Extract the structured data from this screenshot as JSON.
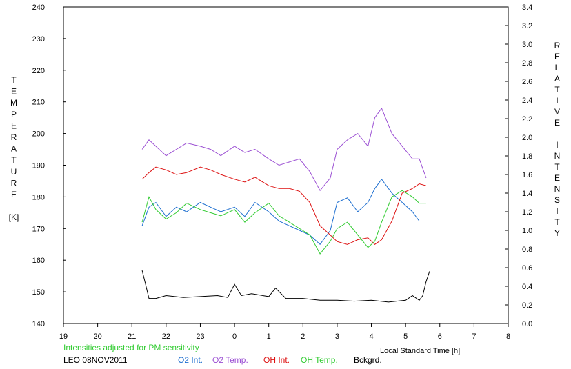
{
  "chart_data": {
    "type": "line",
    "title": "",
    "xlabel": "Local Standard Time [h]",
    "ylabel_left_letters": [
      "T",
      "E",
      "M",
      "P",
      "E",
      "R",
      "A",
      "T",
      "U",
      "R",
      "E",
      "",
      "[K]"
    ],
    "ylabel_right_letters": [
      "R",
      "E",
      "L",
      "A",
      "T",
      "I",
      "V",
      "E",
      "",
      "I",
      "N",
      "T",
      "E",
      "N",
      "S",
      "I",
      "T",
      "Y"
    ],
    "x_tick_labels": [
      "19",
      "20",
      "21",
      "22",
      "23",
      "0",
      "1",
      "2",
      "3",
      "4",
      "5",
      "6",
      "7",
      "8"
    ],
    "xlim": [
      19,
      32
    ],
    "ylim_left": [
      140,
      240
    ],
    "ylim_right": [
      0.0,
      3.4
    ],
    "left_ticks": [
      "140",
      "150",
      "160",
      "170",
      "180",
      "190",
      "200",
      "210",
      "220",
      "230",
      "240"
    ],
    "right_ticks": [
      "0.0",
      "0.2",
      "0.4",
      "0.6",
      "0.8",
      "1.0",
      "1.2",
      "1.4",
      "1.6",
      "1.8",
      "2.0",
      "2.2",
      "2.4",
      "2.6",
      "2.8",
      "3.0",
      "3.2",
      "3.4"
    ],
    "note": "Intensities adjusted for PM sensitivity",
    "site_label": "LEO 08NOV2011",
    "grid": false,
    "series": [
      {
        "name": "O2 Int.",
        "axis": "right",
        "color": "#1e6fd0",
        "x": [
          21.3,
          21.5,
          21.7,
          22.0,
          22.3,
          22.6,
          23.0,
          23.3,
          23.6,
          24.0,
          24.3,
          24.6,
          25.0,
          25.3,
          25.6,
          25.9,
          26.2,
          26.5,
          26.8,
          27.0,
          27.3,
          27.6,
          27.9,
          28.1,
          28.3,
          28.6,
          28.9,
          29.2,
          29.4,
          29.6
        ],
        "y": [
          1.05,
          1.25,
          1.3,
          1.15,
          1.25,
          1.2,
          1.3,
          1.25,
          1.2,
          1.25,
          1.15,
          1.3,
          1.2,
          1.1,
          1.05,
          1.0,
          0.95,
          0.85,
          1.0,
          1.3,
          1.35,
          1.2,
          1.3,
          1.45,
          1.55,
          1.4,
          1.3,
          1.2,
          1.1,
          1.1
        ]
      },
      {
        "name": "O2 Temp.",
        "axis": "left",
        "color": "#9b4fd3",
        "x": [
          21.3,
          21.5,
          21.7,
          22.0,
          22.3,
          22.6,
          23.0,
          23.3,
          23.6,
          24.0,
          24.3,
          24.6,
          25.0,
          25.3,
          25.6,
          25.9,
          26.2,
          26.5,
          26.8,
          27.0,
          27.3,
          27.6,
          27.9,
          28.1,
          28.3,
          28.6,
          28.9,
          29.2,
          29.4,
          29.6
        ],
        "y": [
          195,
          198,
          196,
          193,
          195,
          197,
          196,
          195,
          193,
          196,
          194,
          195,
          192,
          190,
          191,
          192,
          188,
          182,
          186,
          195,
          198,
          200,
          196,
          205,
          208,
          200,
          196,
          192,
          192,
          186
        ]
      },
      {
        "name": "OH Int.",
        "axis": "right",
        "color": "#dd1111",
        "x": [
          21.3,
          21.5,
          21.7,
          22.0,
          22.3,
          22.6,
          23.0,
          23.3,
          23.6,
          24.0,
          24.3,
          24.6,
          25.0,
          25.3,
          25.6,
          25.9,
          26.2,
          26.5,
          26.8,
          27.0,
          27.3,
          27.6,
          27.9,
          28.1,
          28.3,
          28.6,
          28.9,
          29.2,
          29.4,
          29.6
        ],
        "y": [
          1.55,
          1.62,
          1.68,
          1.65,
          1.6,
          1.62,
          1.68,
          1.65,
          1.6,
          1.55,
          1.52,
          1.57,
          1.48,
          1.45,
          1.45,
          1.42,
          1.3,
          1.05,
          0.95,
          0.88,
          0.85,
          0.9,
          0.92,
          0.85,
          0.9,
          1.1,
          1.4,
          1.45,
          1.5,
          1.48
        ]
      },
      {
        "name": "OH Temp.",
        "axis": "left",
        "color": "#33cc33",
        "x": [
          21.3,
          21.5,
          21.7,
          22.0,
          22.3,
          22.6,
          23.0,
          23.3,
          23.6,
          24.0,
          24.3,
          24.6,
          25.0,
          25.3,
          25.6,
          25.9,
          26.2,
          26.5,
          26.8,
          27.0,
          27.3,
          27.6,
          27.9,
          28.1,
          28.3,
          28.6,
          28.9,
          29.2,
          29.4,
          29.6
        ],
        "y": [
          172,
          180,
          176,
          173,
          175,
          178,
          176,
          175,
          174,
          176,
          172,
          175,
          178,
          174,
          172,
          170,
          168,
          162,
          166,
          170,
          172,
          168,
          164,
          166,
          172,
          180,
          182,
          180,
          178,
          178
        ]
      },
      {
        "name": "Bckgrd.",
        "axis": "right",
        "color": "#000000",
        "x": [
          21.3,
          21.4,
          21.5,
          21.7,
          22.0,
          22.5,
          23.0,
          23.5,
          23.8,
          24.0,
          24.2,
          24.5,
          25.0,
          25.2,
          25.5,
          26.0,
          26.5,
          27.0,
          27.5,
          28.0,
          28.5,
          29.0,
          29.2,
          29.4,
          29.5,
          29.6,
          29.7
        ],
        "y": [
          0.57,
          0.42,
          0.27,
          0.27,
          0.3,
          0.28,
          0.29,
          0.3,
          0.28,
          0.42,
          0.3,
          0.32,
          0.29,
          0.38,
          0.27,
          0.27,
          0.25,
          0.25,
          0.24,
          0.25,
          0.23,
          0.25,
          0.3,
          0.25,
          0.3,
          0.45,
          0.56
        ]
      }
    ]
  }
}
